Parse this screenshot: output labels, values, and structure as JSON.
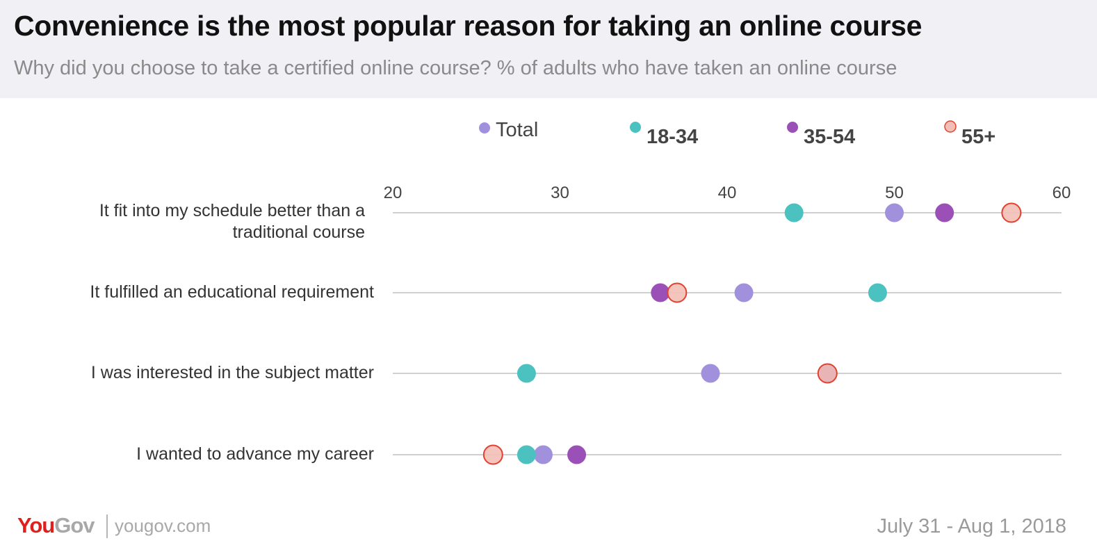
{
  "header": {
    "title": "Convenience is the most popular reason for taking an online course",
    "subtitle": "Why did you choose to take a certified online course? % of adults who have taken an online course"
  },
  "chart_data": {
    "type": "scatter",
    "title": "Convenience is the most popular reason for taking an online course",
    "subtitle": "Why did you choose to take a certified online course? % of adults who have taken an online course",
    "xlim": [
      20,
      60
    ],
    "xticks": [
      "20",
      "30",
      "40",
      "50",
      "60"
    ],
    "grid": true,
    "legend_position": "top",
    "categories": [
      [
        "It fit into my schedule better than a",
        "traditional course"
      ],
      [
        "It fulfilled an educational requirement"
      ],
      [
        "I was interested in the subject matter"
      ],
      [
        "I wanted to advance my career"
      ]
    ],
    "series": [
      {
        "name": "Total",
        "color": "#a191dd",
        "values": [
          50,
          41,
          39,
          29
        ]
      },
      {
        "name": "18-34",
        "color": "#4cc2c0",
        "values": [
          44,
          49,
          28,
          28
        ]
      },
      {
        "name": "35-54",
        "color": "#9b50b8",
        "values": [
          53,
          36,
          46,
          31
        ]
      },
      {
        "name": "55+",
        "color": "#f2bfb6",
        "stroke": "#e3412f",
        "values": [
          57,
          37,
          46,
          26
        ]
      }
    ]
  },
  "footer": {
    "logo_you": "You",
    "logo_gov": "Gov",
    "site": "yougov.com",
    "date": "July 31 - Aug 1, 2018"
  }
}
